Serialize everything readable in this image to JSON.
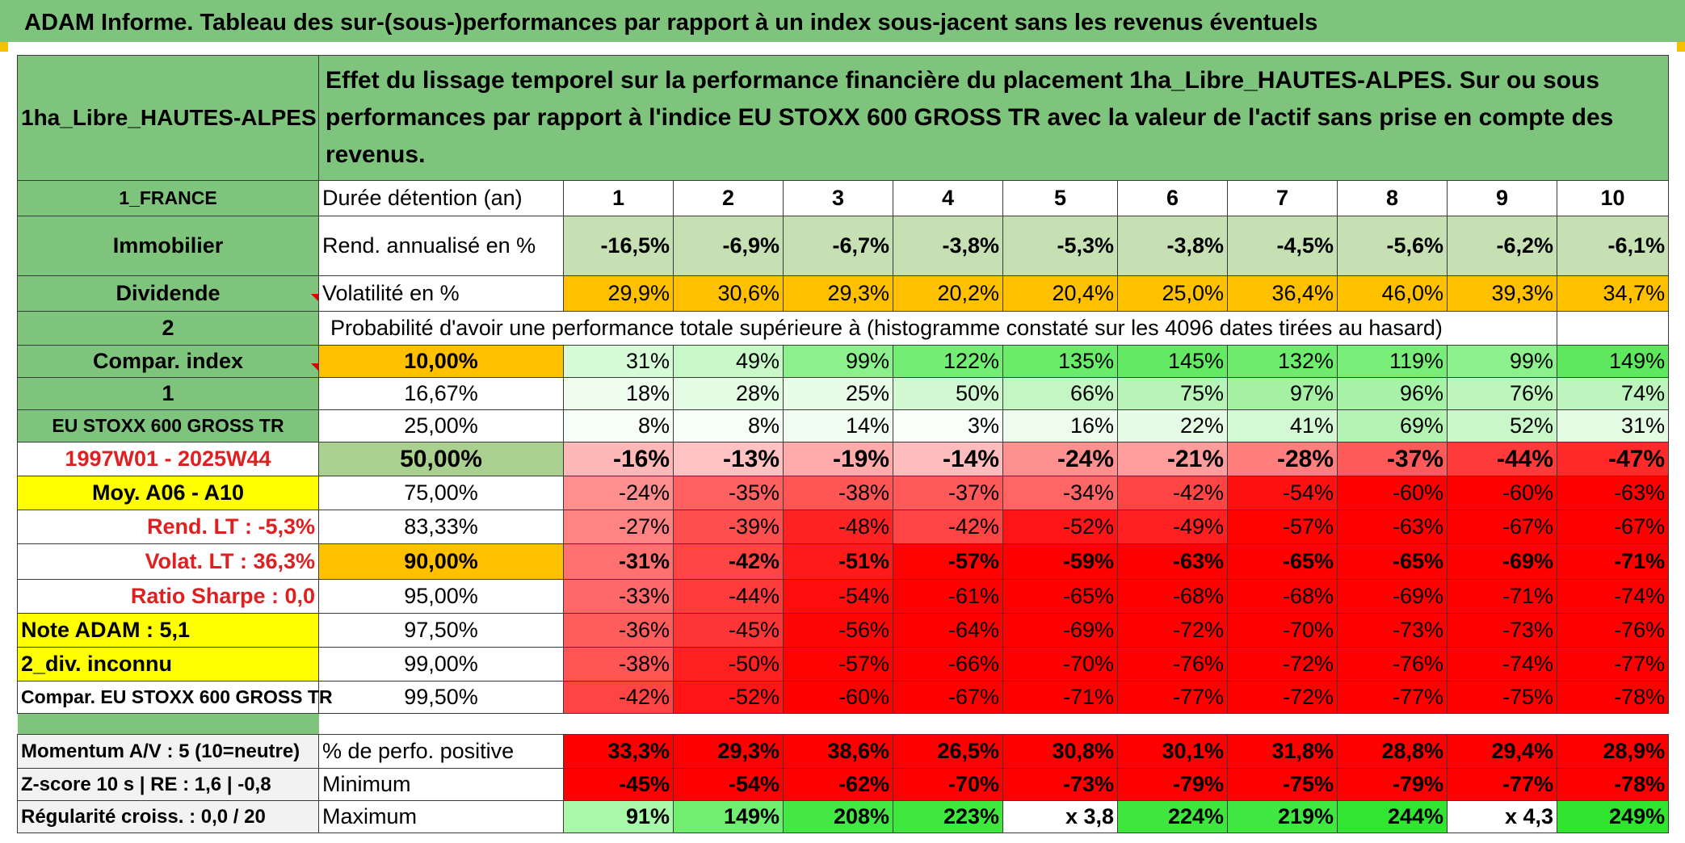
{
  "title": "ADAM Informe. Tableau des sur-(sous-)performances par rapport à un index sous-jacent sans les revenus éventuels",
  "header": {
    "fund": "1ha_Libre_HAUTES-ALPES",
    "description": "Effet du lissage temporel sur la performance financière du placement 1ha_Libre_HAUTES-ALPES. Sur ou sous performances par rapport à l'indice EU STOXX 600 GROSS TR avec la valeur de l'actif sans prise en compte des revenus."
  },
  "left_labels": {
    "country": "1_FRANCE",
    "category": "Immobilier",
    "income": "Dividende",
    "selector_a": "2",
    "compar_index": "Compar. index",
    "selector_b": "1",
    "index_name": "EU STOXX 600 GROSS TR",
    "period": "1997W01 - 2025W44",
    "moy": "Moy. A06 - A10",
    "rend_lt": "Rend. LT :   -5,3%",
    "volat_lt": "Volat. LT :   36,3%",
    "sharpe": "Ratio Sharpe :    0,0",
    "note": "Note ADAM : 5,1",
    "div": "2_div. inconnu",
    "compar_full": "Compar. EU STOXX 600 GROSS TR",
    "momentum": "Momentum A/V : 5 (10=neutre)",
    "zscore": "Z-score 10 s | RE : 1,6 | -0,8",
    "regularite": "Régularité croiss. : 0,0 / 20"
  },
  "row_labels": {
    "duree": "Durée détention (an)",
    "rend": "Rend. annualisé en %",
    "vol": "Volatilité en %",
    "proba": "Probabilité d'avoir une performance totale supérieure à (histogramme constaté sur les 4096 dates tirées au hasard)",
    "positive": "% de perfo. positive",
    "minimum": "Minimum",
    "maximum": "Maximum"
  },
  "years": [
    "1",
    "2",
    "3",
    "4",
    "5",
    "6",
    "7",
    "8",
    "9",
    "10"
  ],
  "rend": [
    "-16,5%",
    "-6,9%",
    "-6,7%",
    "-3,8%",
    "-5,3%",
    "-3,8%",
    "-4,5%",
    "-5,6%",
    "-6,2%",
    "-6,1%"
  ],
  "vol": [
    "29,9%",
    "30,6%",
    "29,3%",
    "20,2%",
    "20,4%",
    "25,0%",
    "36,4%",
    "46,0%",
    "39,3%",
    "34,7%"
  ],
  "proba_rows": [
    {
      "pct": "10,00%",
      "vals": [
        "31%",
        "49%",
        "99%",
        "122%",
        "135%",
        "145%",
        "132%",
        "119%",
        "99%",
        "149%"
      ]
    },
    {
      "pct": "16,67%",
      "vals": [
        "18%",
        "28%",
        "25%",
        "50%",
        "66%",
        "75%",
        "97%",
        "96%",
        "76%",
        "74%"
      ]
    },
    {
      "pct": "25,00%",
      "vals": [
        "8%",
        "8%",
        "14%",
        "3%",
        "16%",
        "22%",
        "41%",
        "69%",
        "52%",
        "31%"
      ]
    },
    {
      "pct": "50,00%",
      "vals": [
        "-16%",
        "-13%",
        "-19%",
        "-14%",
        "-24%",
        "-21%",
        "-28%",
        "-37%",
        "-44%",
        "-47%"
      ]
    },
    {
      "pct": "75,00%",
      "vals": [
        "-24%",
        "-35%",
        "-38%",
        "-37%",
        "-34%",
        "-42%",
        "-54%",
        "-60%",
        "-60%",
        "-63%"
      ]
    },
    {
      "pct": "83,33%",
      "vals": [
        "-27%",
        "-39%",
        "-48%",
        "-42%",
        "-52%",
        "-49%",
        "-57%",
        "-63%",
        "-67%",
        "-67%"
      ]
    },
    {
      "pct": "90,00%",
      "vals": [
        "-31%",
        "-42%",
        "-51%",
        "-57%",
        "-59%",
        "-63%",
        "-65%",
        "-65%",
        "-69%",
        "-71%"
      ]
    },
    {
      "pct": "95,00%",
      "vals": [
        "-33%",
        "-44%",
        "-54%",
        "-61%",
        "-65%",
        "-68%",
        "-68%",
        "-69%",
        "-71%",
        "-74%"
      ]
    },
    {
      "pct": "97,50%",
      "vals": [
        "-36%",
        "-45%",
        "-56%",
        "-64%",
        "-69%",
        "-72%",
        "-70%",
        "-73%",
        "-73%",
        "-76%"
      ]
    },
    {
      "pct": "99,00%",
      "vals": [
        "-38%",
        "-50%",
        "-57%",
        "-66%",
        "-70%",
        "-76%",
        "-72%",
        "-76%",
        "-74%",
        "-77%"
      ]
    },
    {
      "pct": "99,50%",
      "vals": [
        "-42%",
        "-52%",
        "-60%",
        "-67%",
        "-71%",
        "-77%",
        "-72%",
        "-77%",
        "-75%",
        "-78%"
      ]
    }
  ],
  "positive": [
    "33,3%",
    "29,3%",
    "38,6%",
    "26,5%",
    "30,8%",
    "30,1%",
    "31,8%",
    "28,8%",
    "29,4%",
    "28,9%"
  ],
  "minimum": [
    "-45%",
    "-54%",
    "-62%",
    "-70%",
    "-73%",
    "-79%",
    "-75%",
    "-79%",
    "-77%",
    "-78%"
  ],
  "maximum": [
    "91%",
    "149%",
    "208%",
    "223%",
    "x 3,8",
    "224%",
    "219%",
    "244%",
    "x 4,3",
    "249%"
  ],
  "colors": {
    "rend_cells": [
      "#c6e0b4",
      "#c6e0b4",
      "#c6e0b4",
      "#c6e0b4",
      "#c6e0b4",
      "#c6e0b4",
      "#c6e0b4",
      "#c6e0b4",
      "#c6e0b4",
      "#c6e0b4"
    ],
    "vol_cells": [
      "#ffc000",
      "#ffc000",
      "#ffc000",
      "#ffc000",
      "#ffc000",
      "#ffc000",
      "#ffc000",
      "#ffc000",
      "#ffc000",
      "#ffc000"
    ],
    "proba_cells": [
      [
        "#d7fbd7",
        "#c8f8c8",
        "#8cf08c",
        "#74ed74",
        "#6aeb6a",
        "#63e963",
        "#6dec6d",
        "#78ee78",
        "#8cf08c",
        "#5ee85e"
      ],
      [
        "#eefdee",
        "#e4fbe4",
        "#e8fce8",
        "#d2f8d2",
        "#c3f6c3",
        "#b8f4b8",
        "#a4f1a4",
        "#a6f2a6",
        "#bdf5bd",
        "#bef5be"
      ],
      [
        "#f7fef7",
        "#f7fef7",
        "#f1fdf1",
        "#fbfffb",
        "#edfced",
        "#e6fbe6",
        "#d3f8d3",
        "#b5f3b5",
        "#c9f7c9",
        "#e2fbe2"
      ],
      [
        "#ffb8b8",
        "#ffc2c2",
        "#ffabab",
        "#ffbcbc",
        "#ff9090",
        "#ff9c9c",
        "#ff7f7f",
        "#ff5a5a",
        "#ff3a3a",
        "#ff2a2a"
      ],
      [
        "#ff8e8e",
        "#ff6161",
        "#ff5555",
        "#ff5959",
        "#ff6565",
        "#ff4444",
        "#ff1010",
        "#ff0000",
        "#ff0000",
        "#ff0000"
      ],
      [
        "#ff8383",
        "#ff4f4f",
        "#ff2323",
        "#ff4444",
        "#ff1515",
        "#ff2121",
        "#ff0303",
        "#ff0000",
        "#ff0000",
        "#ff0000"
      ],
      [
        "#ff7070",
        "#ff4444",
        "#ff1a1a",
        "#ff0303",
        "#ff0000",
        "#ff0000",
        "#ff0000",
        "#ff0000",
        "#ff0000",
        "#ff0000"
      ],
      [
        "#ff6868",
        "#ff3b3b",
        "#ff0c0c",
        "#ff0000",
        "#ff0000",
        "#ff0000",
        "#ff0000",
        "#ff0000",
        "#ff0000",
        "#ff0000"
      ],
      [
        "#ff5c5c",
        "#ff3636",
        "#ff0606",
        "#ff0000",
        "#ff0000",
        "#ff0000",
        "#ff0000",
        "#ff0000",
        "#ff0000",
        "#ff0000"
      ],
      [
        "#ff5555",
        "#ff2020",
        "#ff0303",
        "#ff0000",
        "#ff0000",
        "#ff0000",
        "#ff0000",
        "#ff0000",
        "#ff0000",
        "#ff0000"
      ],
      [
        "#ff4444",
        "#ff1515",
        "#ff0000",
        "#ff0000",
        "#ff0000",
        "#ff0000",
        "#ff0000",
        "#ff0000",
        "#ff0000",
        "#ff0000"
      ]
    ],
    "positive_cells": [
      "#ff0000",
      "#ff0000",
      "#ff0000",
      "#ff0000",
      "#ff0000",
      "#ff0000",
      "#ff0000",
      "#ff0000",
      "#ff0000",
      "#ff0000"
    ],
    "minimum_cells": [
      "#ff0000",
      "#ff0000",
      "#ff0000",
      "#ff0000",
      "#ff0000",
      "#ff0000",
      "#ff0000",
      "#ff0000",
      "#ff0000",
      "#ff0000"
    ],
    "maximum_cells": [
      "#a9f7a9",
      "#70ee70",
      "#44e844",
      "#3fe73f",
      "#ffffff",
      "#3ee63e",
      "#40e740",
      "#33e533",
      "#ffffff",
      "#30e430"
    ]
  }
}
